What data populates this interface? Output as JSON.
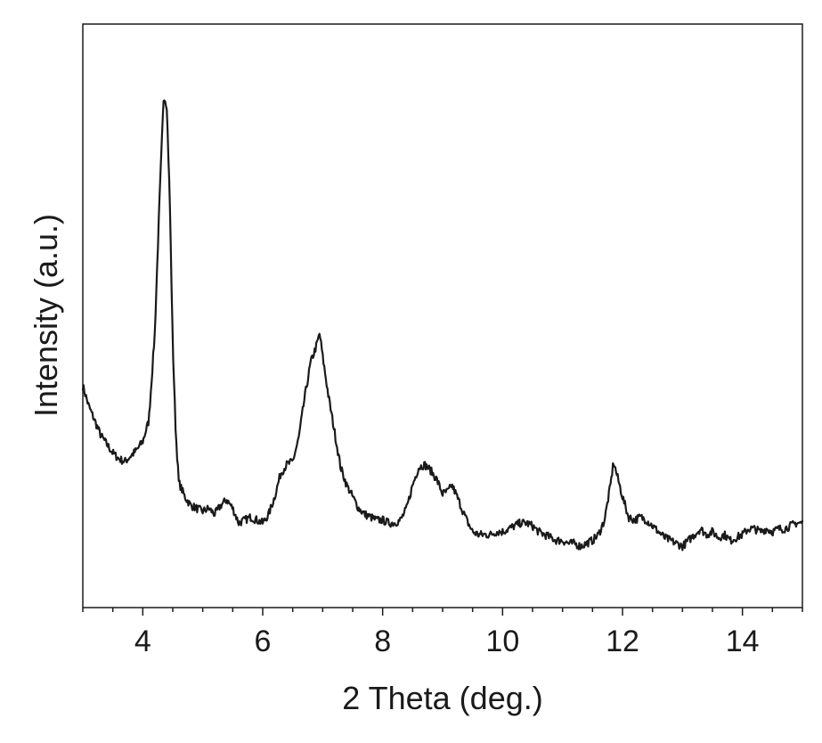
{
  "chart_data": {
    "type": "line",
    "title": "",
    "xlabel": "2 Theta (deg.)",
    "ylabel": "Intensity (a.u.)",
    "xlim": [
      3,
      15
    ],
    "ylim": [
      0,
      100
    ],
    "x_ticks": [
      4,
      6,
      8,
      10,
      12,
      14
    ],
    "x_tick_labels": [
      "4",
      "6",
      "8",
      "10",
      "12",
      "14"
    ],
    "x_minor_step": 0.5,
    "y_ticks_shown": false,
    "grid": false,
    "legend": "none",
    "line_color": "#1a1a1a",
    "series": [
      {
        "points": [
          [
            3.0,
            38.0
          ],
          [
            3.1,
            34.5
          ],
          [
            3.2,
            32.0
          ],
          [
            3.3,
            29.5
          ],
          [
            3.4,
            28.0
          ],
          [
            3.5,
            26.5
          ],
          [
            3.6,
            25.5
          ],
          [
            3.7,
            25.0
          ],
          [
            3.8,
            26.0
          ],
          [
            3.9,
            27.0
          ],
          [
            4.0,
            28.5
          ],
          [
            4.1,
            32.0
          ],
          [
            4.2,
            47.0
          ],
          [
            4.28,
            70.0
          ],
          [
            4.35,
            88.0
          ],
          [
            4.4,
            86.0
          ],
          [
            4.45,
            70.0
          ],
          [
            4.5,
            45.0
          ],
          [
            4.55,
            30.0
          ],
          [
            4.6,
            21.5
          ],
          [
            4.7,
            19.0
          ],
          [
            4.8,
            17.5
          ],
          [
            4.9,
            17.0
          ],
          [
            5.0,
            16.5
          ],
          [
            5.1,
            17.0
          ],
          [
            5.2,
            16.0
          ],
          [
            5.3,
            17.5
          ],
          [
            5.4,
            18.5
          ],
          [
            5.5,
            17.0
          ],
          [
            5.6,
            14.5
          ],
          [
            5.7,
            15.0
          ],
          [
            5.8,
            15.5
          ],
          [
            5.9,
            15.0
          ],
          [
            6.0,
            14.5
          ],
          [
            6.1,
            16.0
          ],
          [
            6.2,
            19.0
          ],
          [
            6.3,
            23.0
          ],
          [
            6.4,
            24.5
          ],
          [
            6.5,
            25.0
          ],
          [
            6.6,
            29.0
          ],
          [
            6.7,
            36.0
          ],
          [
            6.8,
            42.0
          ],
          [
            6.9,
            45.0
          ],
          [
            6.95,
            47.0
          ],
          [
            7.0,
            43.0
          ],
          [
            7.1,
            36.0
          ],
          [
            7.2,
            30.0
          ],
          [
            7.3,
            24.0
          ],
          [
            7.4,
            21.0
          ],
          [
            7.5,
            19.0
          ],
          [
            7.6,
            17.0
          ],
          [
            7.7,
            16.0
          ],
          [
            7.8,
            15.5
          ],
          [
            7.9,
            15.0
          ],
          [
            8.0,
            15.0
          ],
          [
            8.1,
            14.5
          ],
          [
            8.2,
            14.5
          ],
          [
            8.3,
            15.0
          ],
          [
            8.4,
            17.0
          ],
          [
            8.5,
            21.0
          ],
          [
            8.6,
            24.0
          ],
          [
            8.7,
            24.5
          ],
          [
            8.8,
            23.5
          ],
          [
            8.9,
            22.0
          ],
          [
            9.0,
            19.5
          ],
          [
            9.1,
            20.0
          ],
          [
            9.15,
            21.0
          ],
          [
            9.2,
            20.0
          ],
          [
            9.3,
            17.5
          ],
          [
            9.4,
            15.0
          ],
          [
            9.5,
            13.0
          ],
          [
            9.6,
            12.5
          ],
          [
            9.7,
            12.5
          ],
          [
            9.8,
            12.5
          ],
          [
            9.9,
            13.0
          ],
          [
            10.0,
            13.0
          ],
          [
            10.1,
            13.5
          ],
          [
            10.2,
            14.0
          ],
          [
            10.3,
            14.5
          ],
          [
            10.4,
            14.5
          ],
          [
            10.5,
            14.0
          ],
          [
            10.6,
            13.0
          ],
          [
            10.7,
            12.5
          ],
          [
            10.8,
            12.0
          ],
          [
            10.9,
            11.5
          ],
          [
            11.0,
            11.5
          ],
          [
            11.1,
            11.0
          ],
          [
            11.2,
            11.0
          ],
          [
            11.3,
            10.5
          ],
          [
            11.4,
            11.0
          ],
          [
            11.5,
            11.5
          ],
          [
            11.6,
            12.5
          ],
          [
            11.7,
            15.0
          ],
          [
            11.8,
            21.0
          ],
          [
            11.85,
            25.0
          ],
          [
            11.9,
            23.0
          ],
          [
            12.0,
            19.0
          ],
          [
            12.1,
            15.5
          ],
          [
            12.2,
            15.0
          ],
          [
            12.3,
            15.5
          ],
          [
            12.4,
            15.0
          ],
          [
            12.5,
            14.0
          ],
          [
            12.6,
            13.0
          ],
          [
            12.7,
            12.0
          ],
          [
            12.8,
            11.5
          ],
          [
            12.9,
            11.0
          ],
          [
            13.0,
            10.5
          ],
          [
            13.1,
            11.5
          ],
          [
            13.2,
            12.5
          ],
          [
            13.3,
            13.5
          ],
          [
            13.4,
            12.5
          ],
          [
            13.5,
            13.0
          ],
          [
            13.6,
            12.0
          ],
          [
            13.7,
            12.5
          ],
          [
            13.8,
            11.5
          ],
          [
            13.9,
            12.0
          ],
          [
            14.0,
            12.5
          ],
          [
            14.1,
            13.5
          ],
          [
            14.2,
            13.5
          ],
          [
            14.3,
            13.0
          ],
          [
            14.4,
            13.5
          ],
          [
            14.5,
            13.0
          ],
          [
            14.6,
            13.5
          ],
          [
            14.7,
            13.5
          ],
          [
            14.8,
            14.0
          ],
          [
            14.9,
            14.5
          ],
          [
            15.0,
            14.5
          ]
        ]
      }
    ]
  }
}
